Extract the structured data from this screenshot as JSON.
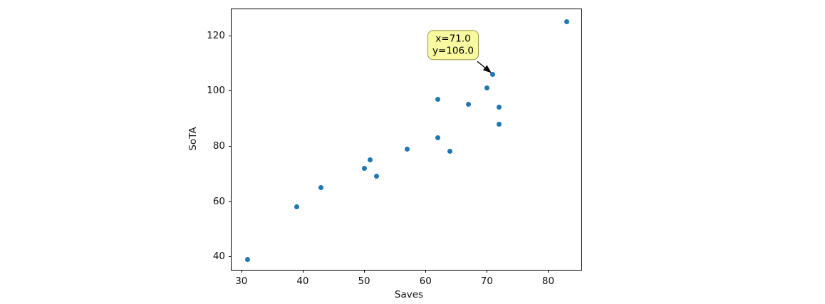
{
  "chart_data": {
    "type": "scatter",
    "xlabel": "Saves",
    "ylabel": "SoTA",
    "x": [
      31,
      39,
      43,
      50,
      51,
      52,
      57,
      62,
      62,
      64,
      67,
      70,
      71,
      72,
      72,
      83
    ],
    "y": [
      39,
      58,
      65,
      72,
      75,
      69,
      79,
      83,
      97,
      78,
      95,
      101,
      106,
      88,
      94,
      125
    ],
    "xlim": [
      28.4,
      85.4
    ],
    "ylim": [
      35.2,
      129.5
    ],
    "xticks": [
      {
        "value": 30,
        "label": "30"
      },
      {
        "value": 40,
        "label": "40"
      },
      {
        "value": 50,
        "label": "50"
      },
      {
        "value": 60,
        "label": "60"
      },
      {
        "value": 70,
        "label": "70"
      },
      {
        "value": 80,
        "label": "80"
      }
    ],
    "yticks": [
      {
        "value": 40,
        "label": "40"
      },
      {
        "value": 60,
        "label": "60"
      },
      {
        "value": 80,
        "label": "80"
      },
      {
        "value": 100,
        "label": "100"
      },
      {
        "value": 120,
        "label": "120"
      }
    ],
    "grid": false,
    "legend": null,
    "marker_color": "#1f77b4",
    "frame_color": "#000000",
    "annotation": {
      "lines": [
        "x=71.0",
        "y=106.0"
      ],
      "target_x": 71,
      "target_y": 106,
      "box_fill": "#f9f99f",
      "box_border": "#96964b",
      "arrow_color": "#000000"
    }
  }
}
